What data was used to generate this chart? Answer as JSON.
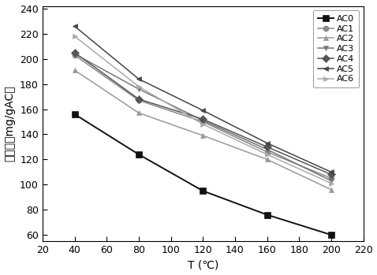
{
  "x": [
    40,
    80,
    120,
    160,
    200
  ],
  "series_order": [
    "AC0",
    "AC1",
    "AC2",
    "AC3",
    "AC4",
    "AC5",
    "AC6"
  ],
  "series": {
    "AC0": [
      156,
      124,
      95,
      76,
      60
    ],
    "AC1": [
      203,
      167,
      150,
      126,
      105
    ],
    "AC2": [
      191,
      157,
      139,
      120,
      96
    ],
    "AC3": [
      204,
      176,
      151,
      128,
      103
    ],
    "AC4": [
      205,
      168,
      152,
      130,
      108
    ],
    "AC5": [
      226,
      184,
      159,
      133,
      110
    ],
    "AC6": [
      218,
      178,
      148,
      124,
      101
    ]
  },
  "colors": {
    "AC0": "#111111",
    "AC1": "#888888",
    "AC2": "#999999",
    "AC3": "#777777",
    "AC4": "#555555",
    "AC5": "#444444",
    "AC6": "#aaaaaa"
  },
  "markers": {
    "AC0": "s",
    "AC1": "o",
    "AC2": "^",
    "AC3": "v",
    "AC4": "D",
    "AC5": "<",
    "AC6": ">"
  },
  "xlabel": "T (℃)",
  "ylabel": "吸附量（mg/gAC）",
  "xlim": [
    20,
    220
  ],
  "ylim": [
    55,
    242
  ],
  "xticks": [
    20,
    40,
    60,
    80,
    100,
    120,
    140,
    160,
    180,
    200,
    220
  ],
  "yticks": [
    60,
    80,
    100,
    120,
    140,
    160,
    180,
    200,
    220,
    240
  ],
  "legend_loc": "upper right"
}
